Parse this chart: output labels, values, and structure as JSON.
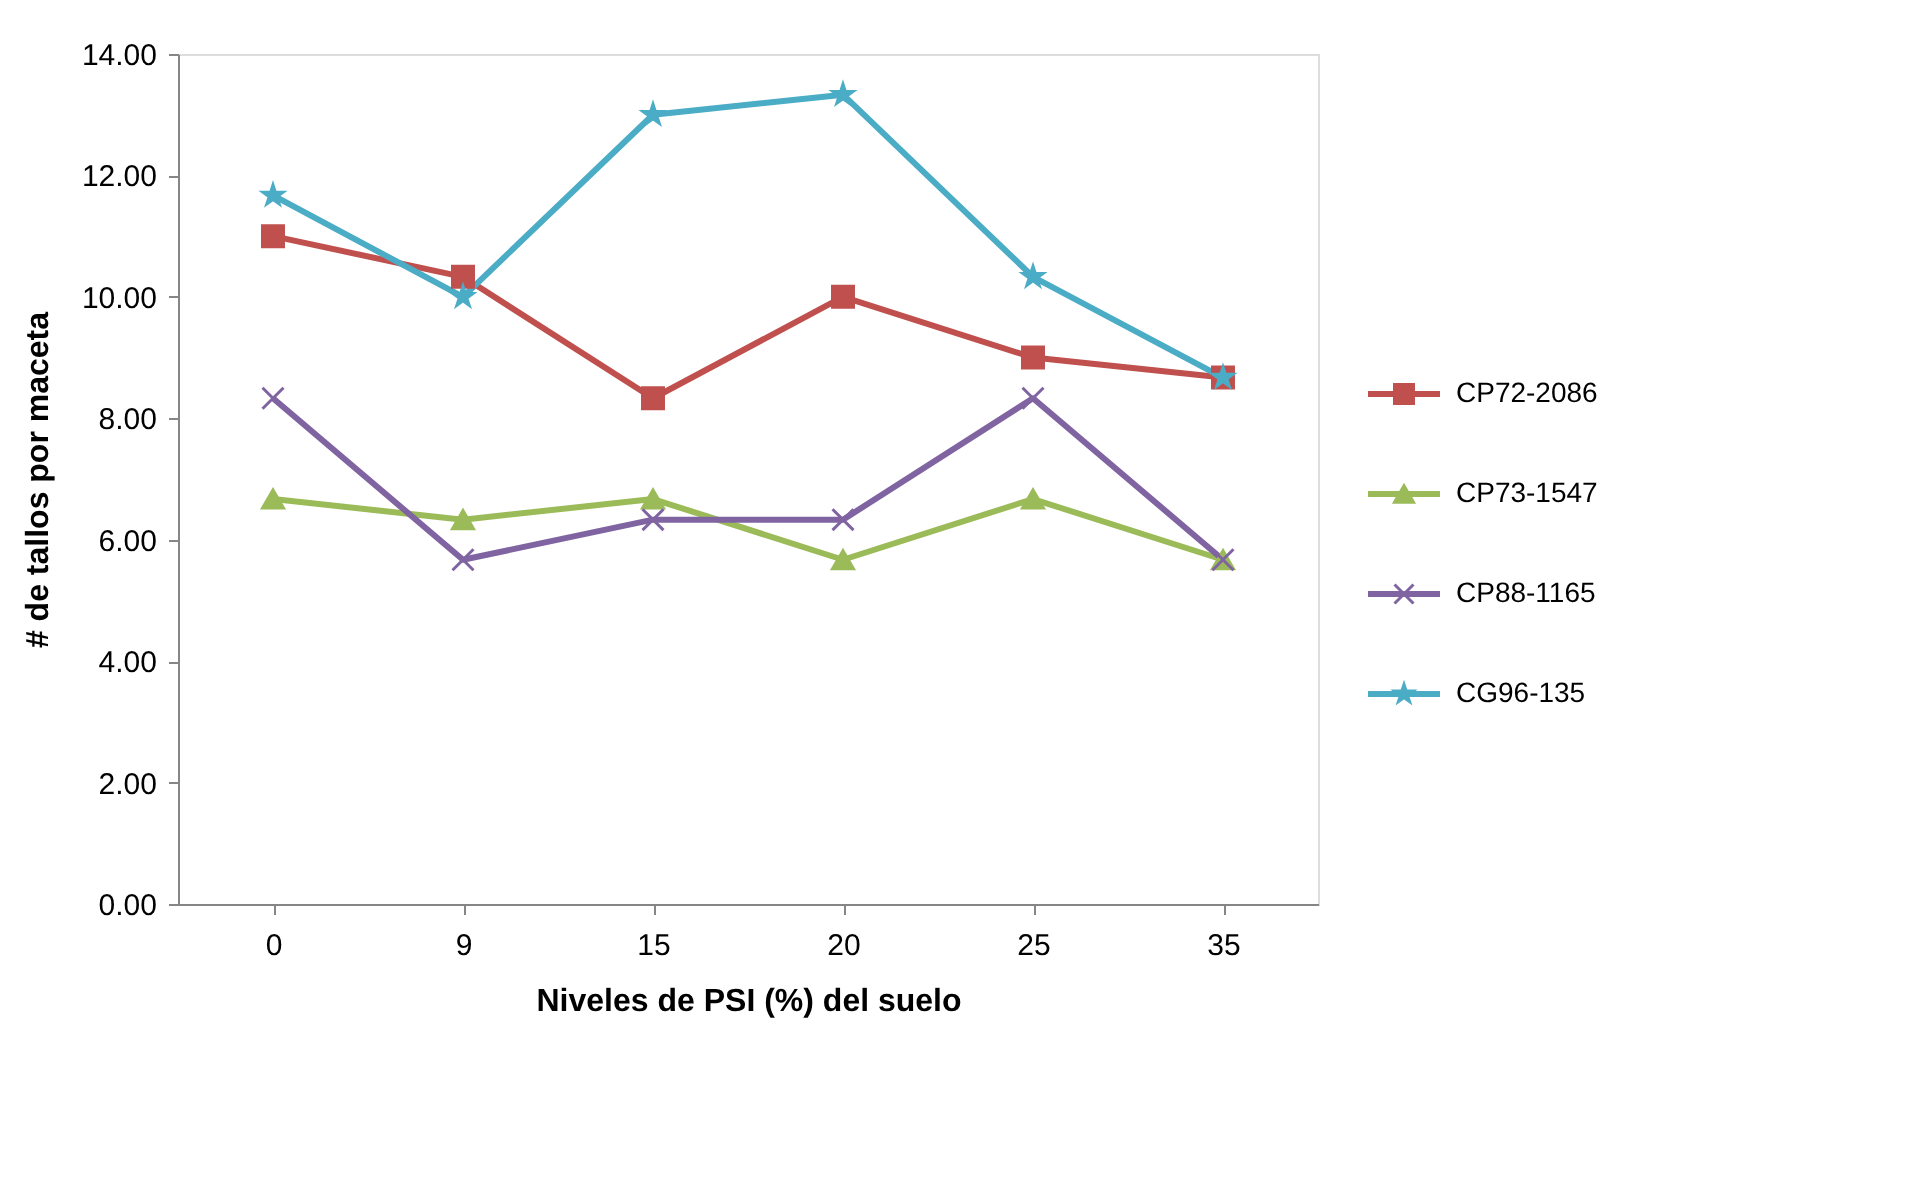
{
  "chart_data": {
    "type": "line",
    "xlabel": "Niveles de PSI (%) del suelo",
    "ylabel": "# de tallos por maceta",
    "categories": [
      "0",
      "9",
      "15",
      "20",
      "25",
      "35"
    ],
    "series": [
      {
        "name": "CP72-2086",
        "color": "#c0504d",
        "marker": "square",
        "values": [
          11.0,
          10.33,
          8.33,
          10.0,
          9.0,
          8.67
        ]
      },
      {
        "name": "CP73-1547",
        "color": "#9bbb59",
        "marker": "triangle",
        "values": [
          6.67,
          6.33,
          6.67,
          5.67,
          6.67,
          5.67
        ]
      },
      {
        "name": "CP88-1165",
        "color": "#8064a2",
        "marker": "cross",
        "values": [
          8.33,
          5.67,
          6.33,
          6.33,
          8.33,
          5.67
        ]
      },
      {
        "name": "CG96-135",
        "color": "#4bacc6",
        "marker": "star",
        "values": [
          11.67,
          10.0,
          13.0,
          13.33,
          10.33,
          8.67
        ]
      }
    ],
    "ylim": [
      0,
      14
    ],
    "yticks": [
      {
        "value": 0,
        "label": "0.00"
      },
      {
        "value": 2,
        "label": "2.00"
      },
      {
        "value": 4,
        "label": "4.00"
      },
      {
        "value": 6,
        "label": "6.00"
      },
      {
        "value": 8,
        "label": "8.00"
      },
      {
        "value": 10,
        "label": "10.00"
      },
      {
        "value": 12,
        "label": "12.00"
      },
      {
        "value": 14,
        "label": "14.00"
      }
    ],
    "grid": false,
    "legend": "right",
    "line_style": "solid"
  }
}
